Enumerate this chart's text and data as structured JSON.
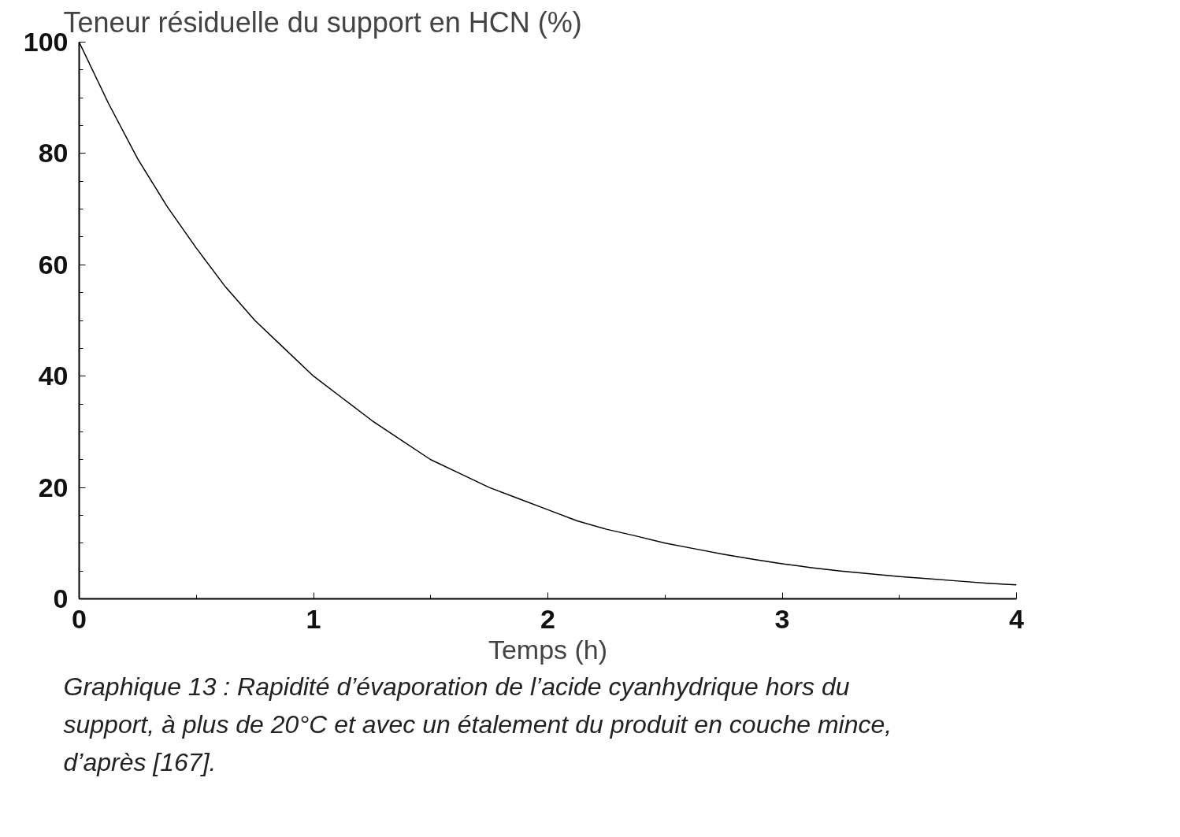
{
  "chart_data": {
    "type": "line",
    "ylabel": "Teneur résiduelle du support en HCN (%)",
    "xlabel": "Temps (h)",
    "annotations": [
      "Graphique 13 : Rapidité d’évaporation de l’acide cyanhydrique hors du support, à plus de 20°C et avec un étalement du produit en couche mince, d’après [167]."
    ],
    "x": [
      0,
      0.125,
      0.25,
      0.375,
      0.5,
      0.625,
      0.75,
      0.875,
      1,
      1.125,
      1.25,
      1.375,
      1.5,
      1.625,
      1.75,
      1.875,
      2,
      2.125,
      2.25,
      2.375,
      2.5,
      2.625,
      2.75,
      2.875,
      3,
      3.125,
      3.25,
      3.375,
      3.5,
      3.625,
      3.75,
      3.875,
      4
    ],
    "series": [
      {
        "color": "#000000",
        "values": [
          100,
          89,
          79,
          70.5,
          63,
          56,
          50,
          45,
          40,
          36,
          32,
          28.5,
          25,
          22.5,
          20,
          18,
          16,
          14,
          12.5,
          11.3,
          10,
          9,
          8,
          7.1,
          6.3,
          5.6,
          5,
          4.5,
          4,
          3.6,
          3.2,
          2.8,
          2.5
        ]
      }
    ],
    "xlim": [
      0,
      4
    ],
    "ylim": [
      0,
      100
    ],
    "xticks": [
      0,
      1,
      2,
      3,
      4
    ],
    "yticks": [
      0,
      20,
      40,
      60,
      80,
      100
    ],
    "grid": false,
    "marker": "none",
    "line_style": "solid"
  }
}
